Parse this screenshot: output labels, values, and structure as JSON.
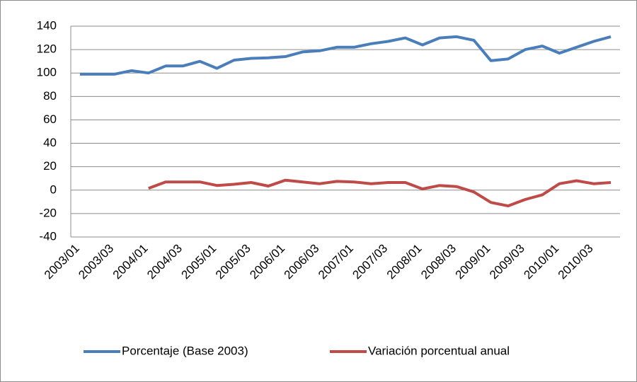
{
  "chart_data": {
    "type": "line",
    "categories": [
      "2003/01",
      null,
      "2003/03",
      null,
      "2004/01",
      null,
      "2004/03",
      null,
      "2005/01",
      null,
      "2005/03",
      null,
      "2006/01",
      null,
      "2006/03",
      null,
      "2007/01",
      null,
      "2007/03",
      null,
      "2008/01",
      null,
      "2008/03",
      null,
      "2009/01",
      null,
      "2009/03",
      null,
      "2010/01",
      null,
      "2010/03",
      null
    ],
    "series": [
      {
        "name": "Porcentaje (Base 2003)",
        "color": "#4a7ebb",
        "values": [
          99,
          99,
          99,
          102,
          100,
          106,
          106,
          110,
          104,
          111,
          112.5,
          113,
          114,
          118,
          119,
          122,
          122,
          125,
          127,
          130,
          124,
          130,
          131,
          128,
          110.5,
          112,
          120,
          123,
          117,
          122,
          127,
          131
        ]
      },
      {
        "name": "Variación porcentual anual",
        "color": "#be4b48",
        "values": [
          null,
          null,
          null,
          null,
          1.5,
          7,
          7,
          7,
          4,
          5,
          6.5,
          3.5,
          8.5,
          7,
          5.5,
          7.5,
          7,
          5.5,
          6.5,
          6.5,
          1,
          4,
          3,
          -1.5,
          -10.5,
          -13.5,
          -8,
          -4,
          5.5,
          8,
          5.5,
          6.5
        ]
      }
    ],
    "ylim": [
      -40,
      140
    ],
    "yticks": [
      -40,
      -20,
      0,
      20,
      40,
      60,
      80,
      100,
      120,
      140
    ],
    "grid": true,
    "legend": "bottom"
  }
}
